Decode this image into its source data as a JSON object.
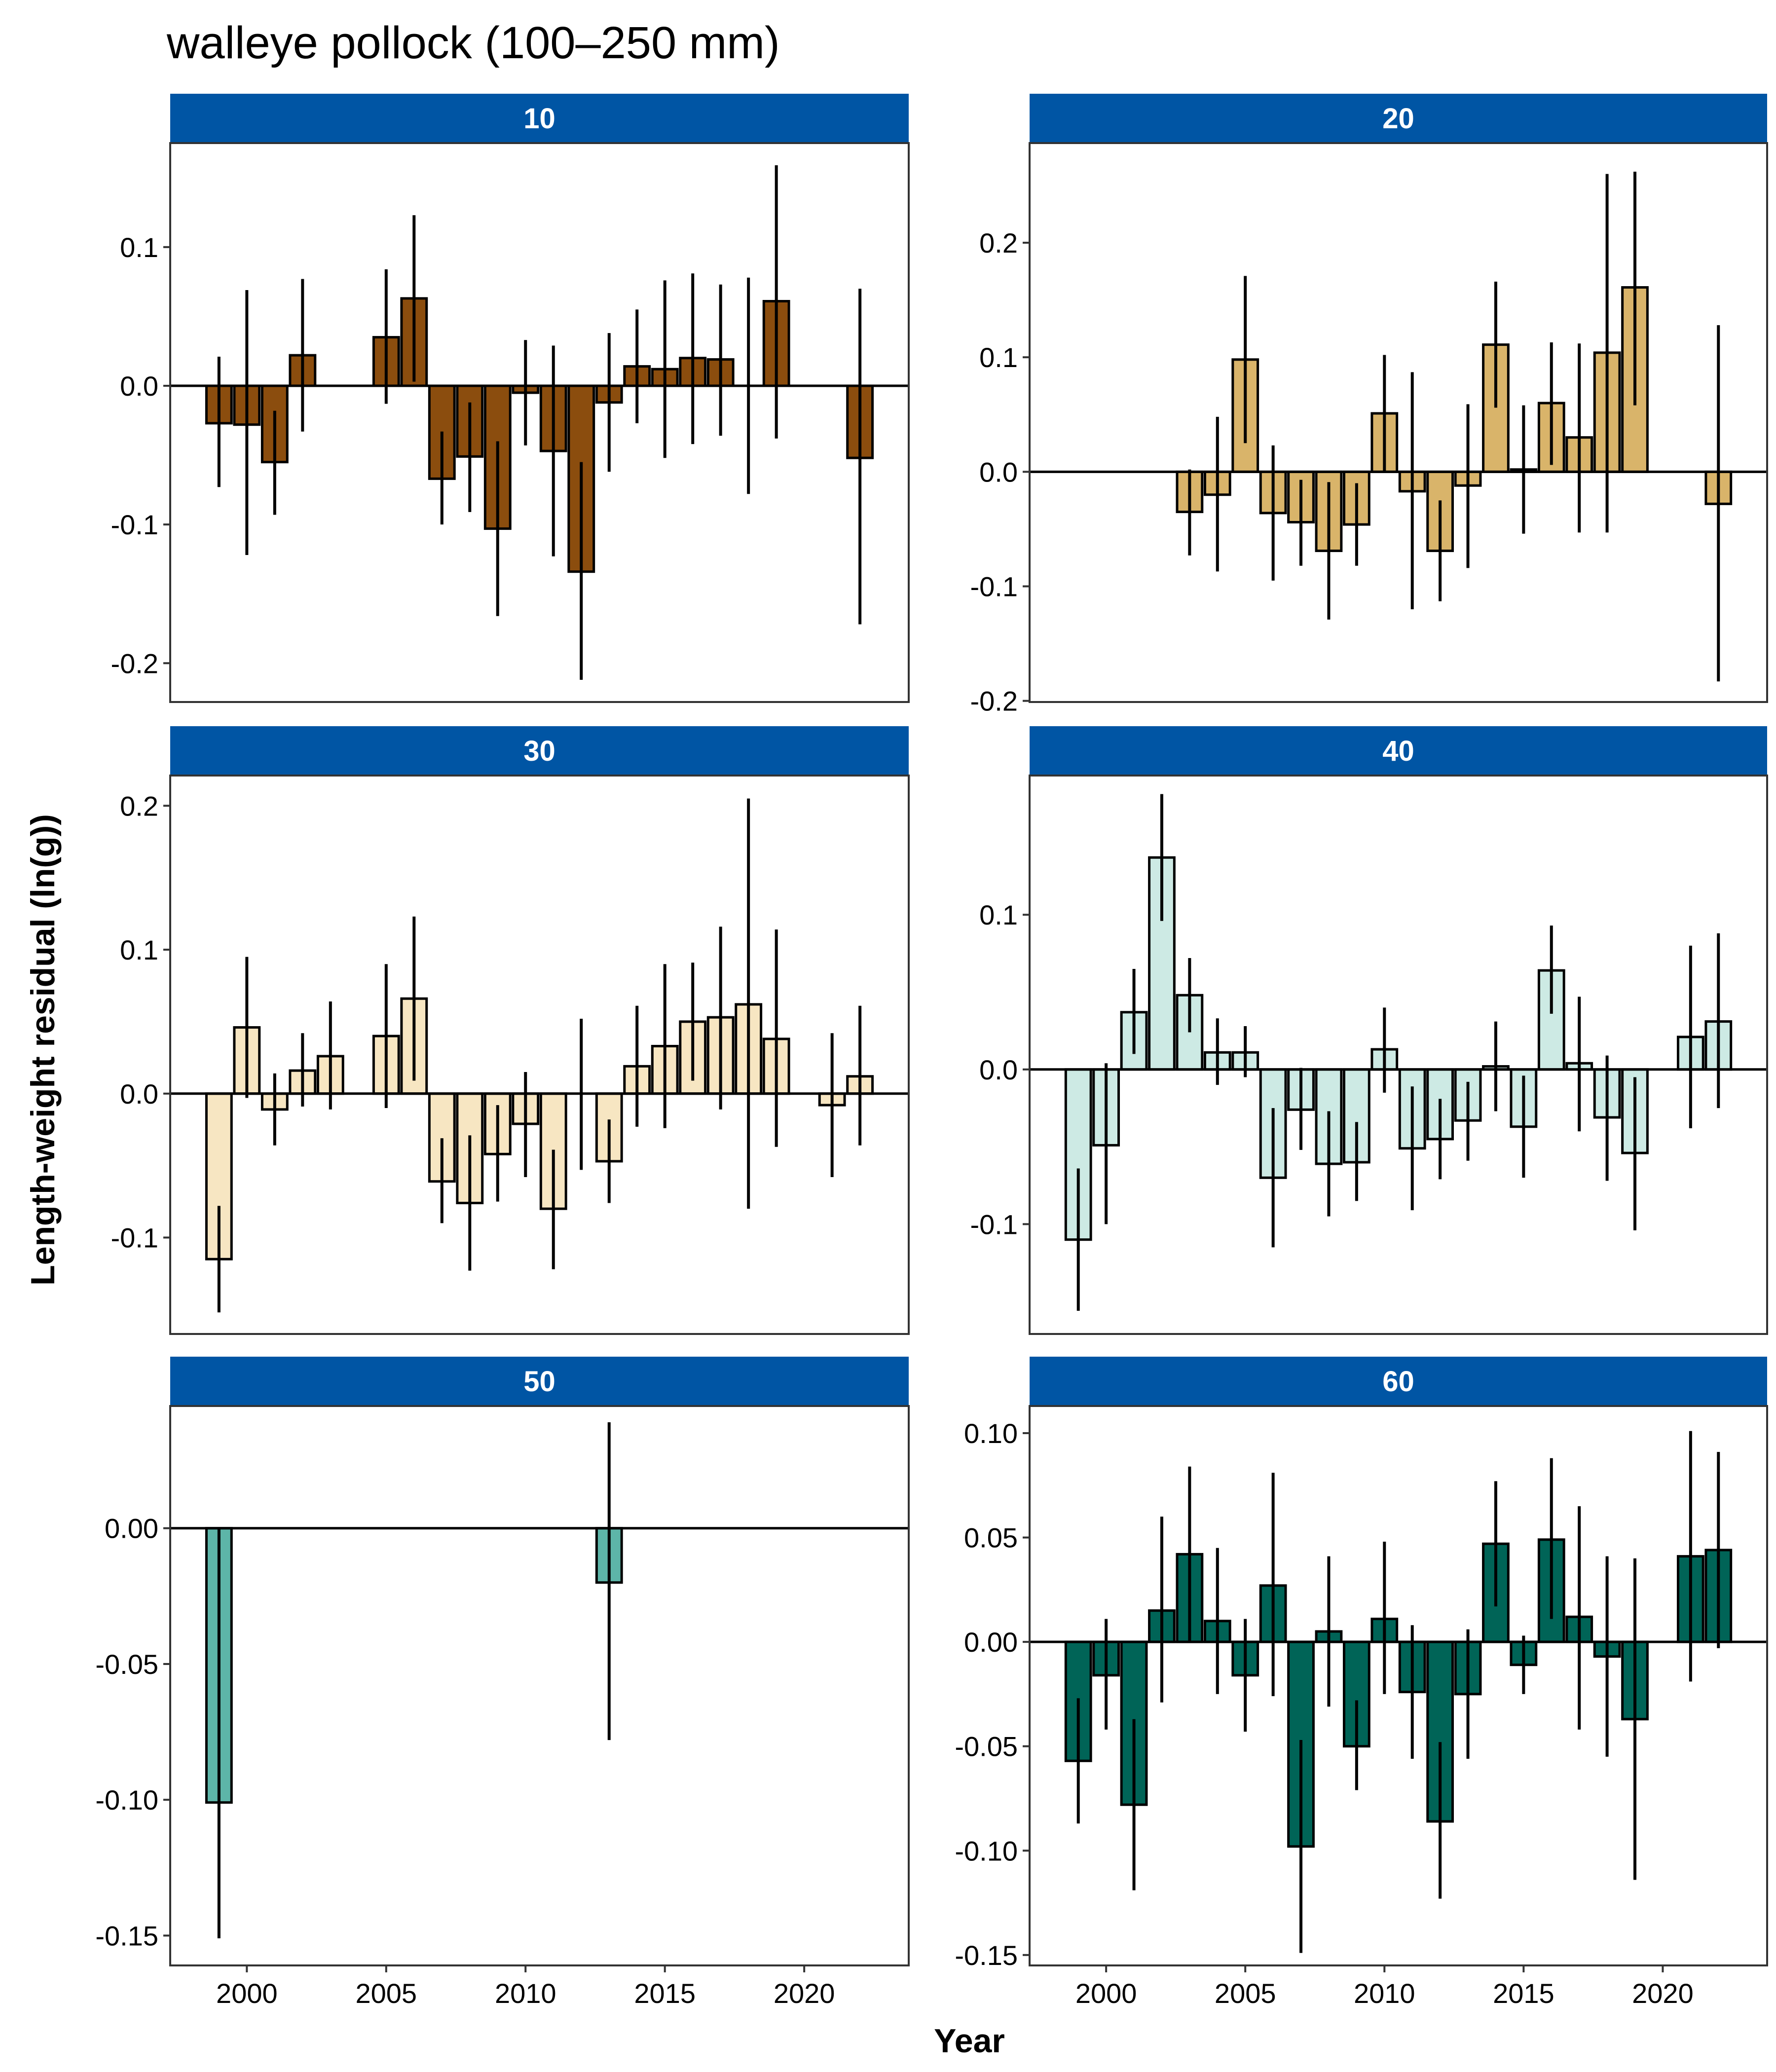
{
  "title": "walleye pollock (100–250 mm)",
  "strip_color": "#0055A4",
  "chart_data": {
    "type": "bar",
    "title": "walleye pollock (100–250 mm)",
    "xlabel": "Year",
    "ylabel": "Length-weight residual (ln(g))",
    "xlim": [
      1997.25,
      2023.75
    ],
    "x_ticks": [
      2000,
      2005,
      2010,
      2015,
      2020
    ],
    "x_tick_labels": [
      "2000",
      "2005",
      "2010",
      "2015",
      "2020"
    ],
    "facets": [
      {
        "label": "10",
        "fill": "#8B4D0E",
        "ylim": [
          -0.228,
          0.175
        ],
        "y_ticks": [
          -0.2,
          -0.1,
          0.0,
          0.1
        ],
        "y_tick_labels": [
          "-0.2",
          "-0.1",
          "0.0",
          "0.1"
        ],
        "bars": [
          {
            "year": 1999,
            "value": -0.027,
            "lo": -0.073,
            "hi": 0.021
          },
          {
            "year": 2000,
            "value": -0.028,
            "lo": -0.122,
            "hi": 0.069
          },
          {
            "year": 2001,
            "value": -0.055,
            "lo": -0.093,
            "hi": -0.018
          },
          {
            "year": 2002,
            "value": 0.022,
            "lo": -0.033,
            "hi": 0.077
          },
          {
            "year": 2005,
            "value": 0.035,
            "lo": -0.013,
            "hi": 0.084
          },
          {
            "year": 2006,
            "value": 0.063,
            "lo": 0.003,
            "hi": 0.123
          },
          {
            "year": 2007,
            "value": -0.067,
            "lo": -0.1,
            "hi": -0.033
          },
          {
            "year": 2008,
            "value": -0.051,
            "lo": -0.091,
            "hi": -0.012
          },
          {
            "year": 2009,
            "value": -0.103,
            "lo": -0.166,
            "hi": -0.04
          },
          {
            "year": 2010,
            "value": -0.005,
            "lo": -0.043,
            "hi": 0.033
          },
          {
            "year": 2011,
            "value": -0.047,
            "lo": -0.123,
            "hi": 0.029
          },
          {
            "year": 2012,
            "value": -0.134,
            "lo": -0.212,
            "hi": -0.055
          },
          {
            "year": 2013,
            "value": -0.012,
            "lo": -0.062,
            "hi": 0.038
          },
          {
            "year": 2014,
            "value": 0.014,
            "lo": -0.027,
            "hi": 0.055
          },
          {
            "year": 2015,
            "value": 0.012,
            "lo": -0.052,
            "hi": 0.076
          },
          {
            "year": 2016,
            "value": 0.02,
            "lo": -0.042,
            "hi": 0.081
          },
          {
            "year": 2017,
            "value": 0.019,
            "lo": -0.036,
            "hi": 0.073
          },
          {
            "year": 2018,
            "value": 0.0,
            "lo": -0.078,
            "hi": 0.078
          },
          {
            "year": 2019,
            "value": 0.061,
            "lo": -0.038,
            "hi": 0.159
          },
          {
            "year": 2022,
            "value": -0.052,
            "lo": -0.172,
            "hi": 0.07
          }
        ]
      },
      {
        "label": "20",
        "fill": "#D9B46A",
        "ylim": [
          -0.201,
          0.287
        ],
        "y_ticks": [
          -0.2,
          -0.1,
          0.0,
          0.1,
          0.2
        ],
        "y_tick_labels": [
          "-0.2",
          "-0.1",
          "0.0",
          "0.1",
          "0.2"
        ],
        "bars": [
          {
            "year": 2003,
            "value": -0.035,
            "lo": -0.073,
            "hi": 0.002
          },
          {
            "year": 2004,
            "value": -0.02,
            "lo": -0.087,
            "hi": 0.048
          },
          {
            "year": 2005,
            "value": 0.098,
            "lo": 0.025,
            "hi": 0.171
          },
          {
            "year": 2006,
            "value": -0.036,
            "lo": -0.095,
            "hi": 0.023
          },
          {
            "year": 2007,
            "value": -0.044,
            "lo": -0.082,
            "hi": -0.007
          },
          {
            "year": 2008,
            "value": -0.069,
            "lo": -0.129,
            "hi": -0.009
          },
          {
            "year": 2009,
            "value": -0.046,
            "lo": -0.082,
            "hi": -0.01
          },
          {
            "year": 2010,
            "value": 0.051,
            "lo": 0.0,
            "hi": 0.102
          },
          {
            "year": 2011,
            "value": -0.017,
            "lo": -0.12,
            "hi": 0.087
          },
          {
            "year": 2012,
            "value": -0.069,
            "lo": -0.113,
            "hi": -0.025
          },
          {
            "year": 2013,
            "value": -0.012,
            "lo": -0.084,
            "hi": 0.059
          },
          {
            "year": 2014,
            "value": 0.111,
            "lo": 0.056,
            "hi": 0.166
          },
          {
            "year": 2015,
            "value": 0.002,
            "lo": -0.054,
            "hi": 0.058
          },
          {
            "year": 2016,
            "value": 0.06,
            "lo": 0.006,
            "hi": 0.113
          },
          {
            "year": 2017,
            "value": 0.03,
            "lo": -0.053,
            "hi": 0.112
          },
          {
            "year": 2018,
            "value": 0.104,
            "lo": -0.053,
            "hi": 0.26
          },
          {
            "year": 2019,
            "value": 0.161,
            "lo": 0.058,
            "hi": 0.262
          },
          {
            "year": 2022,
            "value": -0.028,
            "lo": -0.183,
            "hi": 0.128
          }
        ]
      },
      {
        "label": "30",
        "fill": "#F7E6C2",
        "ylim": [
          -0.167,
          0.221
        ],
        "y_ticks": [
          -0.1,
          0.0,
          0.1,
          0.2
        ],
        "y_tick_labels": [
          "-0.1",
          "0.0",
          "0.1",
          "0.2"
        ],
        "bars": [
          {
            "year": 1999,
            "value": -0.115,
            "lo": -0.152,
            "hi": -0.078
          },
          {
            "year": 2000,
            "value": 0.046,
            "lo": -0.003,
            "hi": 0.095
          },
          {
            "year": 2001,
            "value": -0.011,
            "lo": -0.036,
            "hi": 0.014
          },
          {
            "year": 2002,
            "value": 0.016,
            "lo": -0.009,
            "hi": 0.042
          },
          {
            "year": 2003,
            "value": 0.026,
            "lo": -0.011,
            "hi": 0.064
          },
          {
            "year": 2005,
            "value": 0.04,
            "lo": -0.01,
            "hi": 0.09
          },
          {
            "year": 2006,
            "value": 0.066,
            "lo": 0.009,
            "hi": 0.123
          },
          {
            "year": 2007,
            "value": -0.061,
            "lo": -0.09,
            "hi": -0.031
          },
          {
            "year": 2008,
            "value": -0.076,
            "lo": -0.123,
            "hi": -0.029
          },
          {
            "year": 2009,
            "value": -0.042,
            "lo": -0.075,
            "hi": -0.008
          },
          {
            "year": 2010,
            "value": -0.021,
            "lo": -0.058,
            "hi": 0.015
          },
          {
            "year": 2011,
            "value": -0.08,
            "lo": -0.122,
            "hi": -0.039
          },
          {
            "year": 2012,
            "value": 0.0,
            "lo": -0.053,
            "hi": 0.052
          },
          {
            "year": 2013,
            "value": -0.047,
            "lo": -0.076,
            "hi": -0.018
          },
          {
            "year": 2014,
            "value": 0.019,
            "lo": -0.023,
            "hi": 0.061
          },
          {
            "year": 2015,
            "value": 0.033,
            "lo": -0.024,
            "hi": 0.09
          },
          {
            "year": 2016,
            "value": 0.05,
            "lo": 0.009,
            "hi": 0.091
          },
          {
            "year": 2017,
            "value": 0.053,
            "lo": -0.011,
            "hi": 0.116
          },
          {
            "year": 2018,
            "value": 0.062,
            "lo": -0.08,
            "hi": 0.205
          },
          {
            "year": 2019,
            "value": 0.038,
            "lo": -0.037,
            "hi": 0.114
          },
          {
            "year": 2021,
            "value": -0.008,
            "lo": -0.058,
            "hi": 0.042
          },
          {
            "year": 2022,
            "value": 0.012,
            "lo": -0.036,
            "hi": 0.061
          }
        ]
      },
      {
        "label": "40",
        "fill": "#CDEAE4",
        "ylim": [
          -0.171,
          0.19
        ],
        "y_ticks": [
          -0.1,
          0.0,
          0.1
        ],
        "y_tick_labels": [
          "-0.1",
          "0.0",
          "0.1"
        ],
        "bars": [
          {
            "year": 1999,
            "value": -0.11,
            "lo": -0.156,
            "hi": -0.064
          },
          {
            "year": 2000,
            "value": -0.049,
            "lo": -0.1,
            "hi": 0.004
          },
          {
            "year": 2001,
            "value": 0.037,
            "lo": 0.01,
            "hi": 0.065
          },
          {
            "year": 2002,
            "value": 0.137,
            "lo": 0.096,
            "hi": 0.178
          },
          {
            "year": 2003,
            "value": 0.048,
            "lo": 0.024,
            "hi": 0.072
          },
          {
            "year": 2004,
            "value": 0.011,
            "lo": -0.01,
            "hi": 0.033
          },
          {
            "year": 2005,
            "value": 0.011,
            "lo": -0.005,
            "hi": 0.028
          },
          {
            "year": 2006,
            "value": -0.07,
            "lo": -0.115,
            "hi": -0.025
          },
          {
            "year": 2007,
            "value": -0.026,
            "lo": -0.052,
            "hi": 0.001
          },
          {
            "year": 2008,
            "value": -0.061,
            "lo": -0.095,
            "hi": -0.027
          },
          {
            "year": 2009,
            "value": -0.06,
            "lo": -0.085,
            "hi": -0.034
          },
          {
            "year": 2010,
            "value": 0.013,
            "lo": -0.015,
            "hi": 0.04
          },
          {
            "year": 2011,
            "value": -0.051,
            "lo": -0.091,
            "hi": -0.011
          },
          {
            "year": 2012,
            "value": -0.045,
            "lo": -0.071,
            "hi": -0.019
          },
          {
            "year": 2013,
            "value": -0.033,
            "lo": -0.059,
            "hi": -0.008
          },
          {
            "year": 2014,
            "value": 0.002,
            "lo": -0.027,
            "hi": 0.031
          },
          {
            "year": 2015,
            "value": -0.037,
            "lo": -0.07,
            "hi": -0.004
          },
          {
            "year": 2016,
            "value": 0.064,
            "lo": 0.036,
            "hi": 0.093
          },
          {
            "year": 2017,
            "value": 0.004,
            "lo": -0.04,
            "hi": 0.047
          },
          {
            "year": 2018,
            "value": -0.031,
            "lo": -0.072,
            "hi": 0.009
          },
          {
            "year": 2019,
            "value": -0.054,
            "lo": -0.104,
            "hi": -0.005
          },
          {
            "year": 2021,
            "value": 0.021,
            "lo": -0.038,
            "hi": 0.08
          },
          {
            "year": 2022,
            "value": 0.031,
            "lo": -0.025,
            "hi": 0.088
          }
        ]
      },
      {
        "label": "50",
        "fill": "#5DB5A8",
        "ylim": [
          -0.161,
          0.045
        ],
        "y_ticks": [
          -0.15,
          -0.1,
          -0.05,
          0.0
        ],
        "y_tick_labels": [
          "-0.15",
          "-0.10",
          "-0.05",
          "0.00"
        ],
        "bars": [
          {
            "year": 1999,
            "value": -0.101,
            "lo": -0.151,
            "hi": 0.0
          },
          {
            "year": 2013,
            "value": -0.02,
            "lo": -0.078,
            "hi": 0.039
          }
        ]
      },
      {
        "label": "60",
        "fill": "#006457",
        "ylim": [
          -0.155,
          0.113
        ],
        "y_ticks": [
          -0.15,
          -0.1,
          -0.05,
          0.0,
          0.05,
          0.1
        ],
        "y_tick_labels": [
          "-0.15",
          "-0.10",
          "-0.05",
          "0.00",
          "0.05",
          "0.10"
        ],
        "bars": [
          {
            "year": 1999,
            "value": -0.057,
            "lo": -0.087,
            "hi": -0.027
          },
          {
            "year": 2000,
            "value": -0.016,
            "lo": -0.042,
            "hi": 0.011
          },
          {
            "year": 2001,
            "value": -0.078,
            "lo": -0.119,
            "hi": -0.037
          },
          {
            "year": 2002,
            "value": 0.015,
            "lo": -0.029,
            "hi": 0.06
          },
          {
            "year": 2003,
            "value": 0.042,
            "lo": 0.0,
            "hi": 0.084
          },
          {
            "year": 2004,
            "value": 0.01,
            "lo": -0.025,
            "hi": 0.045
          },
          {
            "year": 2005,
            "value": -0.016,
            "lo": -0.043,
            "hi": 0.011
          },
          {
            "year": 2006,
            "value": 0.027,
            "lo": -0.026,
            "hi": 0.081
          },
          {
            "year": 2007,
            "value": -0.098,
            "lo": -0.149,
            "hi": -0.047
          },
          {
            "year": 2008,
            "value": 0.005,
            "lo": -0.031,
            "hi": 0.041
          },
          {
            "year": 2009,
            "value": -0.05,
            "lo": -0.071,
            "hi": -0.028
          },
          {
            "year": 2010,
            "value": 0.011,
            "lo": -0.025,
            "hi": 0.048
          },
          {
            "year": 2011,
            "value": -0.024,
            "lo": -0.056,
            "hi": 0.008
          },
          {
            "year": 2012,
            "value": -0.086,
            "lo": -0.123,
            "hi": -0.048
          },
          {
            "year": 2013,
            "value": -0.025,
            "lo": -0.056,
            "hi": 0.006
          },
          {
            "year": 2014,
            "value": 0.047,
            "lo": 0.017,
            "hi": 0.077
          },
          {
            "year": 2015,
            "value": -0.011,
            "lo": -0.025,
            "hi": 0.003
          },
          {
            "year": 2016,
            "value": 0.049,
            "lo": 0.011,
            "hi": 0.088
          },
          {
            "year": 2017,
            "value": 0.012,
            "lo": -0.042,
            "hi": 0.065
          },
          {
            "year": 2018,
            "value": -0.007,
            "lo": -0.055,
            "hi": 0.041
          },
          {
            "year": 2019,
            "value": -0.037,
            "lo": -0.114,
            "hi": 0.04
          },
          {
            "year": 2021,
            "value": 0.041,
            "lo": -0.019,
            "hi": 0.101
          },
          {
            "year": 2022,
            "value": 0.044,
            "lo": -0.003,
            "hi": 0.091
          }
        ]
      }
    ]
  }
}
